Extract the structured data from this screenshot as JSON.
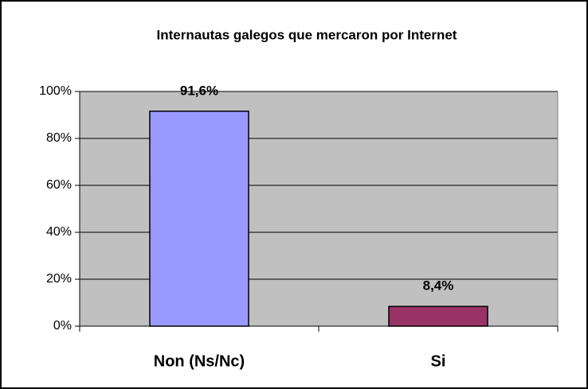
{
  "chart_data": {
    "type": "bar",
    "title": "Internautas galegos que mercaron por Internet",
    "categories": [
      "Non (Ns/Nc)",
      "Si"
    ],
    "values": [
      91.6,
      8.4
    ],
    "value_labels": [
      "91,6%",
      "8,4%"
    ],
    "colors": [
      "#9999ff",
      "#993366"
    ],
    "ylim": [
      0,
      100
    ],
    "yticks": [
      {
        "value": 0,
        "label": "0%"
      },
      {
        "value": 20,
        "label": "20%"
      },
      {
        "value": 40,
        "label": "40%"
      },
      {
        "value": 60,
        "label": "60%"
      },
      {
        "value": 80,
        "label": "80%"
      },
      {
        "value": 100,
        "label": "100%"
      }
    ],
    "grid": true
  }
}
